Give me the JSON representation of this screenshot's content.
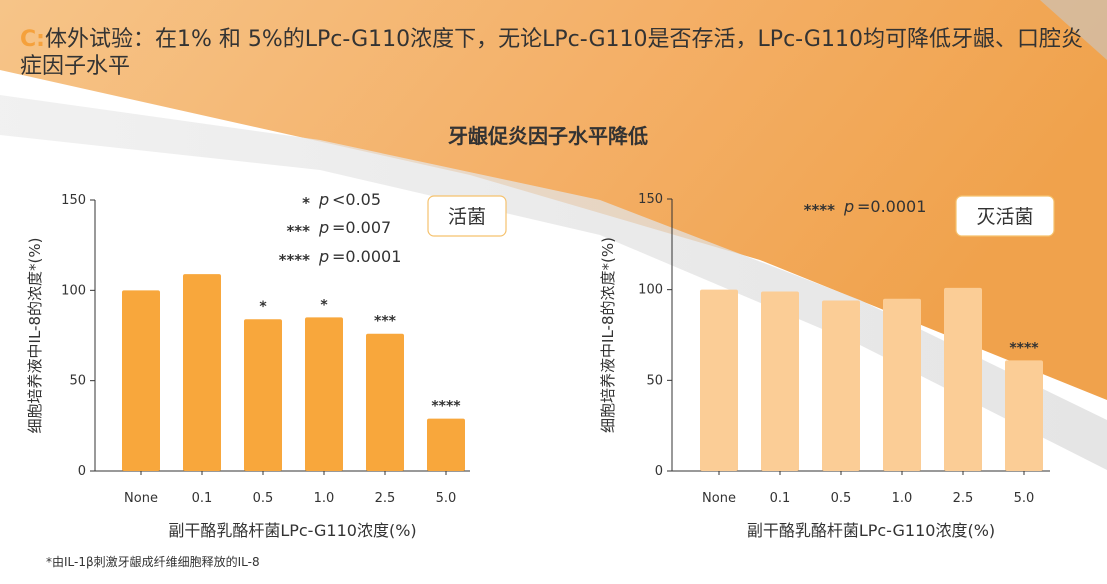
{
  "headline": {
    "prefix": "C:",
    "text": "体外试验：在1% 和 5%的LPc-G110浓度下，无论LPc-G110是否存活，LPc-G110均可降低牙龈、口腔炎症因子水平"
  },
  "colors": {
    "live": "#f8a73c",
    "killed": "#fbcd96",
    "accent": "#f5a13c",
    "badge_border": "#f5c26e"
  },
  "footnote": "*由IL-1β刺激牙龈成纤维细胞释放的IL-8",
  "chart_data": [
    {
      "type": "bar",
      "title": "牙龈促炎因子水平降低",
      "badge": "活菌",
      "categories": [
        "None",
        "0.1",
        "0.5",
        "1.0",
        "2.5",
        "5.0"
      ],
      "values": [
        100,
        109,
        84,
        85,
        76,
        29
      ],
      "significance": [
        "",
        "",
        "*",
        "*",
        "***",
        "****"
      ],
      "legend": [
        {
          "stars": "*",
          "p": "p",
          "text": "<0.05"
        },
        {
          "stars": "***",
          "p": "p",
          "text": "=0.007"
        },
        {
          "stars": "****",
          "p": "p",
          "text": "=0.0001"
        }
      ],
      "xlabel": "副干酪乳酪杆菌LPc-G110浓度(%)",
      "ylabel": "细胞培养液中IL-8的浓度*(%)",
      "ylim": [
        0,
        150
      ],
      "yticks": [
        "0",
        "50",
        "100",
        "150"
      ],
      "color": "#f8a73c",
      "grid": false
    },
    {
      "type": "bar",
      "badge": "灭活菌",
      "categories": [
        "None",
        "0.1",
        "0.5",
        "1.0",
        "2.5",
        "5.0"
      ],
      "values": [
        100,
        99,
        94,
        95,
        101,
        61
      ],
      "significance": [
        "",
        "",
        "",
        "",
        "",
        "****"
      ],
      "legend": [
        {
          "stars": "****",
          "p": "p",
          "text": "=0.0001"
        }
      ],
      "xlabel": "副干酪乳酪杆菌LPc-G110浓度(%)",
      "ylabel": "细胞培养液中IL-8的浓度*(%)",
      "ylim": [
        0,
        150
      ],
      "yticks": [
        "0",
        "50",
        "100",
        "150"
      ],
      "color": "#fbcd96",
      "grid": false
    }
  ]
}
